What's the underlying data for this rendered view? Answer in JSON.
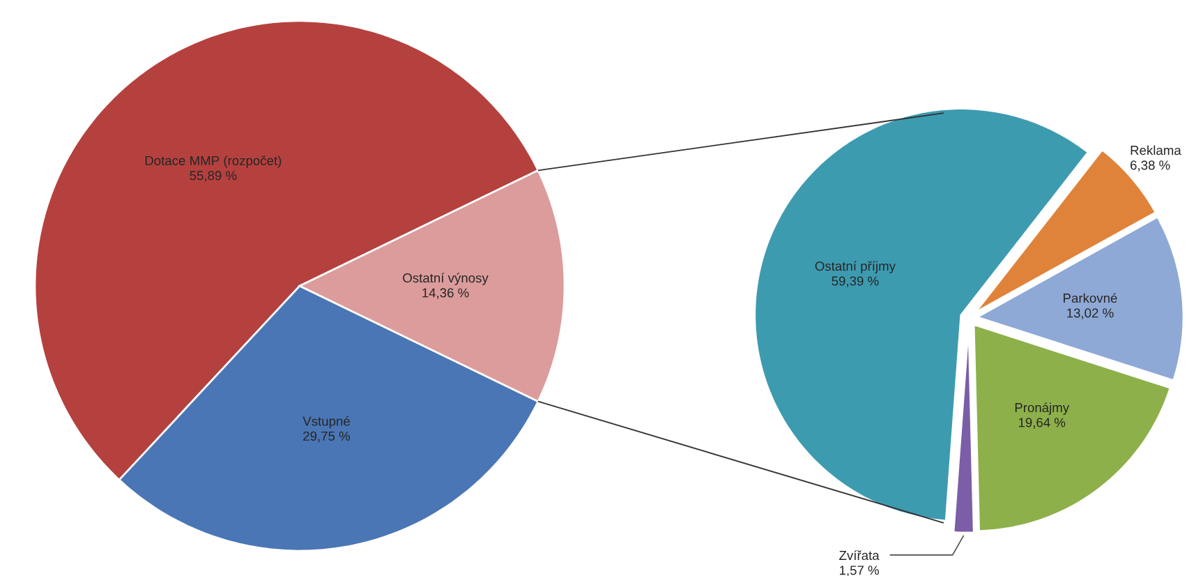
{
  "chart_data": [
    {
      "type": "pie",
      "categories": [
        "Dotace MMP (rozpočet)",
        "Vstupné",
        "Ostatní výnosy"
      ],
      "values": [
        55.89,
        29.75,
        14.36
      ],
      "colors": [
        "#b5413f",
        "#4a76b5",
        "#dc9c9c"
      ],
      "value_labels": [
        "55,89 %",
        "29,75 %",
        "14,36 %"
      ]
    },
    {
      "type": "pie",
      "categories": [
        "Ostatní příjmy",
        "Reklama",
        "Parkovné",
        "Pronájmy",
        "Zvířata"
      ],
      "values": [
        59.39,
        6.38,
        13.02,
        19.64,
        1.57
      ],
      "colors": [
        "#3d9bb0",
        "#e0833a",
        "#8fa9d6",
        "#8db04a",
        "#7b5ea7"
      ],
      "value_labels": [
        "59,39 %",
        "6,38 %",
        "13,02 %",
        "19,64 %",
        "1,57 %"
      ]
    }
  ]
}
